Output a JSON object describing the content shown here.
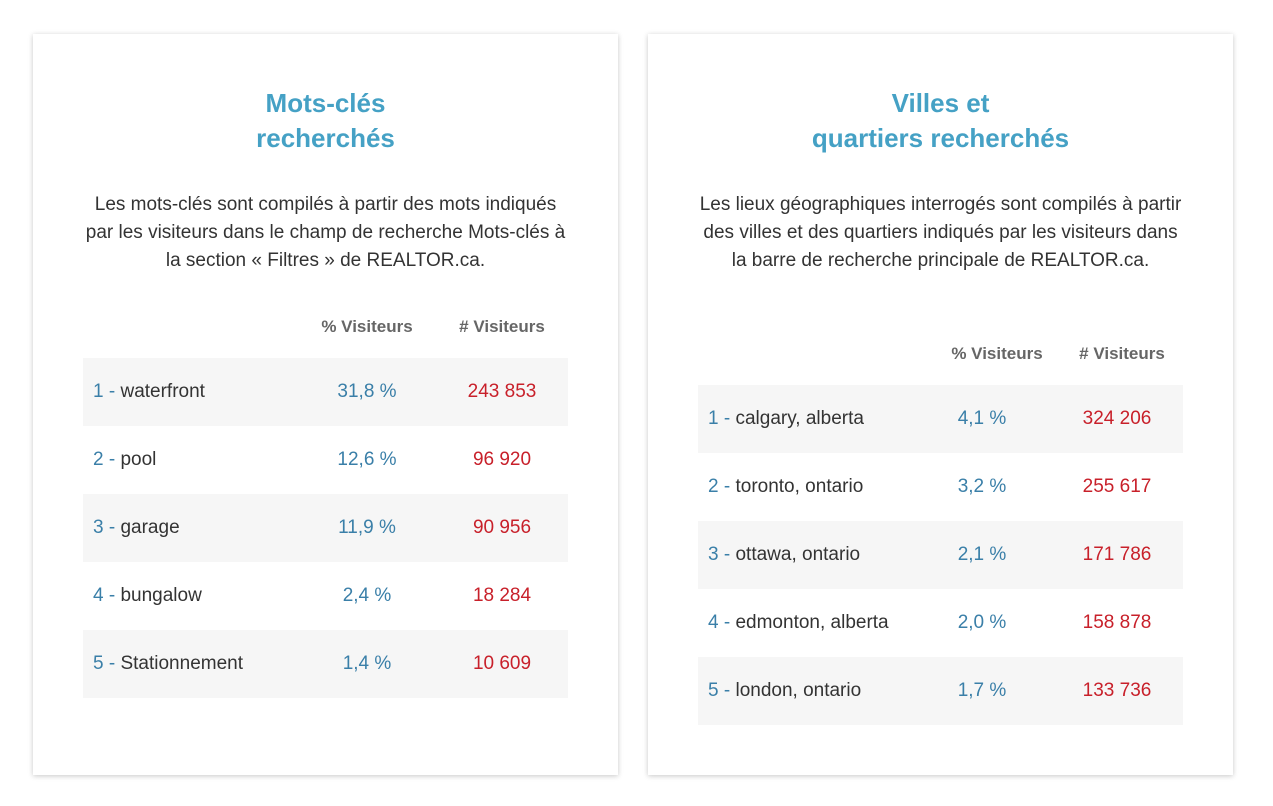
{
  "colors": {
    "title": "#45a1c5",
    "rank": "#3a7fa8",
    "percent": "#3a7fa8",
    "count": "#c8202a",
    "text": "#333333",
    "header": "#666666",
    "row_alt": "#f6f6f6"
  },
  "left": {
    "title_line1": "Mots-clés",
    "title_line2": "recherchés",
    "description": "Les mots-clés sont compilés à partir des mots indiqués par les visiteurs dans le champ de recherche Mots-clés à la section « Filtres » de REALTOR.ca.",
    "col_pct": "% Visiteurs",
    "col_count": "# Visiteurs",
    "rows": [
      {
        "rank": "1",
        "sep": "-",
        "name": "waterfront",
        "pct": "31,8 %",
        "count": "243 853"
      },
      {
        "rank": "2",
        "sep": "-",
        "name": "pool",
        "pct": "12,6 %",
        "count": "96 920"
      },
      {
        "rank": "3",
        "sep": "-",
        "name": "garage",
        "pct": "11,9 %",
        "count": "90 956"
      },
      {
        "rank": "4",
        "sep": "-",
        "name": "bungalow",
        "pct": "2,4 %",
        "count": "18 284"
      },
      {
        "rank": "5",
        "sep": "-",
        "name": "Stationnement",
        "pct": "1,4 %",
        "count": "10 609"
      }
    ]
  },
  "right": {
    "title_line1": "Villes et",
    "title_line2": "quartiers recherchés",
    "description": "Les lieux géographiques interrogés sont compilés à partir des villes et des quartiers indiqués par les visiteurs dans la barre de recherche principale de REALTOR.ca.",
    "col_pct": "% Visiteurs",
    "col_count": "# Visiteurs",
    "rows": [
      {
        "rank": "1",
        "sep": "-",
        "name": "calgary, alberta",
        "pct": "4,1 %",
        "count": "324 206"
      },
      {
        "rank": "2",
        "sep": "-",
        "name": "toronto, ontario",
        "pct": "3,2 %",
        "count": "255 617"
      },
      {
        "rank": "3",
        "sep": "-",
        "name": "ottawa, ontario",
        "pct": "2,1 %",
        "count": "171 786"
      },
      {
        "rank": "4",
        "sep": "-",
        "name": "edmonton, alberta",
        "pct": "2,0 %",
        "count": "158 878"
      },
      {
        "rank": "5",
        "sep": "-",
        "name": "london, ontario",
        "pct": "1,7 %",
        "count": "133 736"
      }
    ]
  }
}
